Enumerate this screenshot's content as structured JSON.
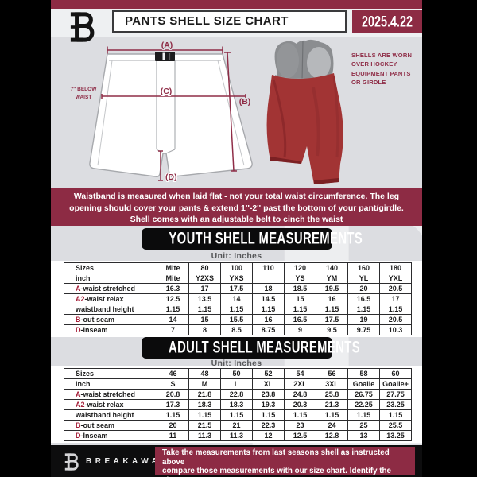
{
  "header": {
    "title": "PANTS SHELL SIZE CHART",
    "date": "2025.4.22",
    "logo_icon": "breakaway-b-logo"
  },
  "watermark_letter": "B",
  "diagram": {
    "labels": {
      "a": "(A)",
      "b": "(B)",
      "c": "(C)",
      "d": "(D)"
    },
    "side_note": "7'' BELOW\nWAIST",
    "photo_caption": "SHELLS ARE WORN\nOVER HOCKEY\nEQUIPMENT PANTS\nOR GIRDLE"
  },
  "notice": {
    "text": "Waistband is measured when laid flat - not your total waist circumference. The leg\nopening should cover your pants & extend 1''-2'' past the bottom of your pant/girdle.\nShell comes with an adjustable belt to cinch the waist"
  },
  "youth": {
    "banner": "YOUTH SHELL MEASUREMENTS",
    "unit": "Unit: Inches",
    "table": {
      "rows": [
        {
          "prefix": "",
          "label": "Sizes",
          "values": [
            "Mite",
            "80",
            "100",
            "110",
            "120",
            "140",
            "160",
            "180"
          ]
        },
        {
          "prefix": "",
          "label": "inch",
          "values": [
            "Mite",
            "Y2XS",
            "YXS",
            "",
            "YS",
            "YM",
            "YL",
            "YXL"
          ]
        },
        {
          "prefix": "A",
          "label": "-waist stretched",
          "values": [
            "16.3",
            "17",
            "17.5",
            "18",
            "18.5",
            "19.5",
            "20",
            "20.5"
          ]
        },
        {
          "prefix": "A2",
          "label": "-waist relax",
          "values": [
            "12.5",
            "13.5",
            "14",
            "14.5",
            "15",
            "16",
            "16.5",
            "17"
          ]
        },
        {
          "prefix": "",
          "label": "waistband height",
          "values": [
            "1.15",
            "1.15",
            "1.15",
            "1.15",
            "1.15",
            "1.15",
            "1.15",
            "1.15"
          ]
        },
        {
          "prefix": "B",
          "label": "-out seam",
          "values": [
            "14",
            "15",
            "15.5",
            "16",
            "16.5",
            "17.5",
            "19",
            "20.5"
          ]
        },
        {
          "prefix": "D",
          "label": "-Inseam",
          "values": [
            "7",
            "8",
            "8.5",
            "8.75",
            "9",
            "9.5",
            "9.75",
            "10.3"
          ]
        }
      ]
    }
  },
  "adult": {
    "banner": "ADULT SHELL MEASUREMENTS",
    "unit": "Unit: Inches",
    "table": {
      "rows": [
        {
          "prefix": "",
          "label": "Sizes",
          "values": [
            "46",
            "48",
            "50",
            "52",
            "54",
            "56",
            "58",
            "60"
          ]
        },
        {
          "prefix": "",
          "label": "inch",
          "values": [
            "S",
            "M",
            "L",
            "XL",
            "2XL",
            "3XL",
            "Goalie",
            "Goalie+"
          ]
        },
        {
          "prefix": "A",
          "label": "-waist stretched",
          "values": [
            "20.8",
            "21.8",
            "22.8",
            "23.8",
            "24.8",
            "25.8",
            "26.75",
            "27.75"
          ]
        },
        {
          "prefix": "A2",
          "label": "-waist relax",
          "values": [
            "17.3",
            "18.3",
            "18.3",
            "19.3",
            "20.3",
            "21.3",
            "22.25",
            "23.25"
          ]
        },
        {
          "prefix": "",
          "label": "waistband height",
          "values": [
            "1.15",
            "1.15",
            "1.15",
            "1.15",
            "1.15",
            "1.15",
            "1.15",
            "1.15"
          ]
        },
        {
          "prefix": "B",
          "label": "-out seam",
          "values": [
            "20",
            "21.5",
            "21",
            "22.3",
            "23",
            "24",
            "25",
            "25.5"
          ]
        },
        {
          "prefix": "D",
          "label": "-Inseam",
          "values": [
            "11",
            "11.3",
            "11.3",
            "12",
            "12.5",
            "12.8",
            "13",
            "13.25"
          ]
        }
      ]
    }
  },
  "footer": {
    "brand": "BREAKAWAY",
    "logo_icon": "breakaway-b-logo",
    "note": "Take the measurements from last seasons shell as instructed above\ncompare those measurements with our size chart. Identify the size\non the chart, if you need a larger size move up the scale on the chart"
  },
  "colors": {
    "maroon": "#8d2b44",
    "accent_red_prefix": "#a5203a",
    "shell_red": "#a23434",
    "girdle_gray": "#8b8d90",
    "page_gray": "#dcdde1",
    "banner_black": "#0b0b0c"
  }
}
